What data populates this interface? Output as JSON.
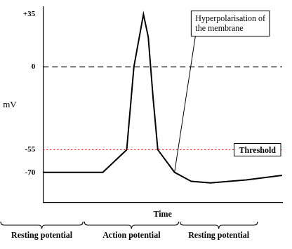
{
  "chart_data": {
    "type": "line",
    "x_label": "Time",
    "y_label": "mV",
    "x": [
      0,
      25,
      35,
      38,
      42,
      44,
      46,
      48,
      55,
      62,
      70,
      85,
      100
    ],
    "values": [
      -70,
      -70,
      -55,
      0,
      35,
      20,
      -20,
      -55,
      -70,
      -76,
      -77,
      -75,
      -72
    ],
    "color": "#000000",
    "xlim": [
      0,
      100
    ],
    "ylim": [
      -90,
      40
    ],
    "yticks": [
      {
        "value": 35,
        "label": "+35"
      },
      0,
      -55,
      -70
    ],
    "grid": false,
    "tick_labels": "y",
    "reference_lines": [
      {
        "y": 0,
        "color": "#000000",
        "line_style": "dashed"
      },
      {
        "y": -55,
        "color": "#ff0000",
        "line_style": "dotted",
        "label": "Threshold"
      }
    ],
    "annotations": [
      {
        "text": "Hyperpolarisation of the membrane",
        "x": 55,
        "y": -70
      }
    ],
    "phases": [
      {
        "label": "Resting potential",
        "x": [
          -18,
          17
        ]
      },
      {
        "label": "Action potential",
        "x": [
          17,
          57
        ]
      },
      {
        "label": "Resting potential",
        "x": [
          57,
          90
        ]
      }
    ]
  }
}
